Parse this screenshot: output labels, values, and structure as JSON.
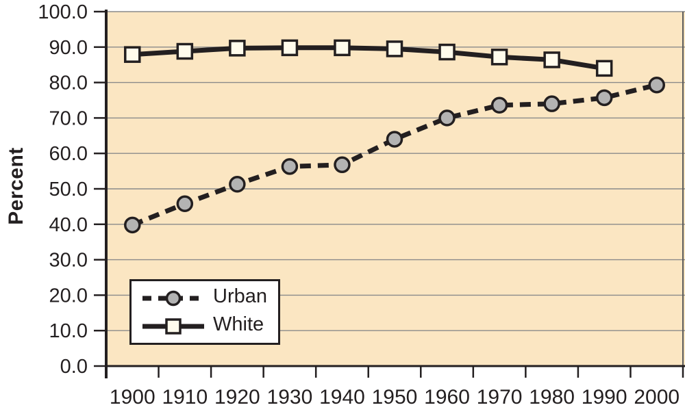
{
  "chart_data": {
    "type": "line",
    "title": "",
    "xlabel": "",
    "ylabel": "Percent",
    "categories": [
      "1900",
      "1910",
      "1920",
      "1930",
      "1940",
      "1950",
      "1960",
      "1970",
      "1980",
      "1990",
      "2000"
    ],
    "series": [
      {
        "name": "Urban",
        "style": "dashed",
        "marker": "circle",
        "marker_fill": "#b3b3b3",
        "values": [
          39.8,
          45.8,
          51.3,
          56.3,
          56.8,
          64.0,
          70.0,
          73.6,
          74.0,
          75.7,
          79.3
        ]
      },
      {
        "name": "White",
        "style": "solid",
        "marker": "square",
        "marker_fill": "#fffbec",
        "values": [
          87.9,
          88.8,
          89.7,
          89.8,
          89.8,
          89.5,
          88.6,
          87.2,
          86.4,
          84.0,
          null
        ]
      }
    ],
    "ylim": [
      0,
      100
    ],
    "y_tick_values": [
      0,
      10,
      20,
      30,
      40,
      50,
      60,
      70,
      80,
      90,
      100
    ],
    "y_ticks": [
      "0.0",
      "10.0",
      "20.0",
      "30.0",
      "40.0",
      "50.0",
      "60.0",
      "70.0",
      "80.0",
      "90.0",
      "100.0"
    ],
    "grid": "horizontal",
    "legend_position": "bottom-left",
    "colors": {
      "plot_bg": "#fbe6c2",
      "grid": "#8a8a8a",
      "line": "#231f20",
      "frame_right": "#5a5a5a",
      "text": "#231f20"
    }
  }
}
